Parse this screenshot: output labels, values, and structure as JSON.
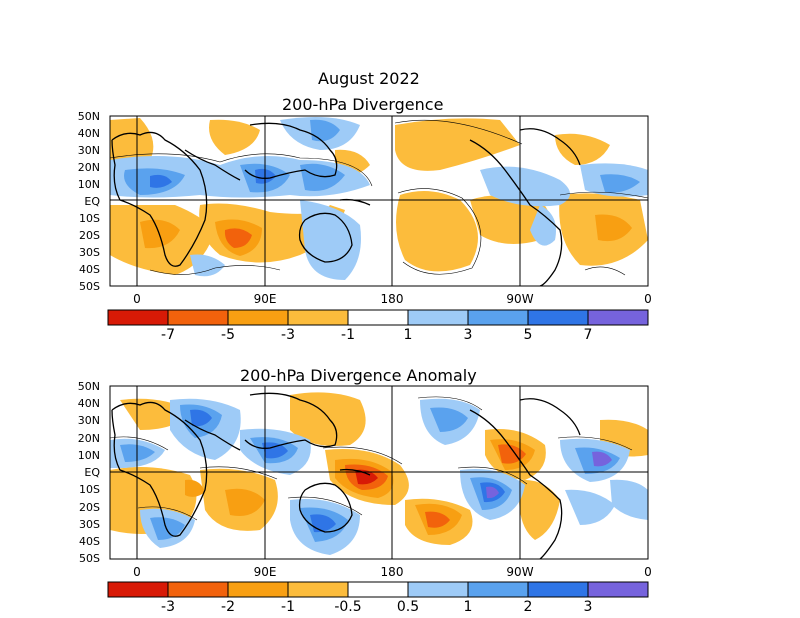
{
  "figure": {
    "title": "August 2022"
  },
  "panels": [
    {
      "title": "200-hPa Divergence",
      "lat_labels": [
        "50N",
        "40N",
        "30N",
        "20N",
        "10N",
        "EQ",
        "10S",
        "20S",
        "30S",
        "40S",
        "50S"
      ],
      "lon_labels": [
        "0",
        "90E",
        "180",
        "90W",
        "0"
      ],
      "colorbar": {
        "colors": [
          "#d81a06",
          "#f2620c",
          "#f89f12",
          "#fcbc3c",
          "#ffffff",
          "#9ecbf7",
          "#5aa2ee",
          "#2f75e6",
          "#7663dd"
        ],
        "labels": [
          "-7",
          "-5",
          "-3",
          "-1",
          "1",
          "3",
          "5",
          "7"
        ]
      }
    },
    {
      "title": "200-hPa Divergence Anomaly",
      "lat_labels": [
        "50N",
        "40N",
        "30N",
        "20N",
        "10N",
        "EQ",
        "10S",
        "20S",
        "30S",
        "40S",
        "50S"
      ],
      "lon_labels": [
        "0",
        "90E",
        "180",
        "90W",
        "0"
      ],
      "colorbar": {
        "colors": [
          "#d81a06",
          "#f2620c",
          "#f89f12",
          "#fcbc3c",
          "#ffffff",
          "#9ecbf7",
          "#5aa2ee",
          "#2f75e6",
          "#7663dd"
        ],
        "labels": [
          "-3",
          "-2",
          "-1",
          "-0.5",
          "0.5",
          "1",
          "2",
          "3"
        ]
      }
    }
  ]
}
